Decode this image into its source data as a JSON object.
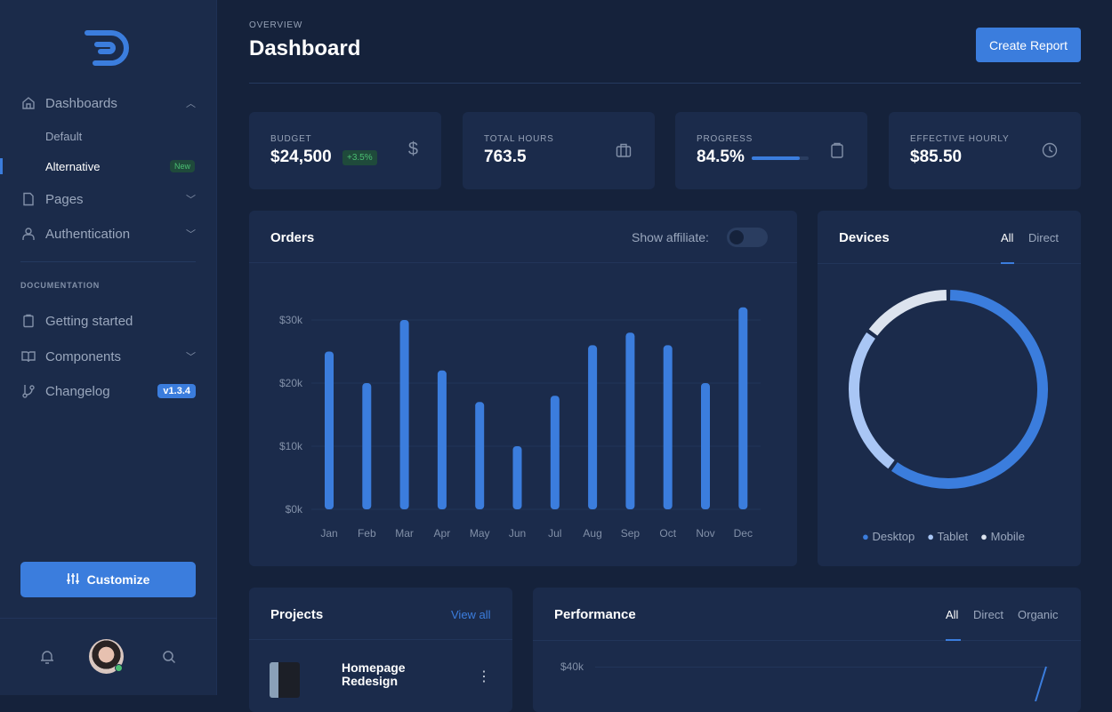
{
  "sidebar": {
    "nav": [
      {
        "label": "Dashboards",
        "icon": "home-icon",
        "expanded": true,
        "children": [
          {
            "label": "Default"
          },
          {
            "label": "Alternative",
            "badge": "New",
            "active": true
          }
        ]
      },
      {
        "label": "Pages",
        "icon": "file-icon"
      },
      {
        "label": "Authentication",
        "icon": "user-icon"
      }
    ],
    "section_title": "DOCUMENTATION",
    "docs": [
      {
        "label": "Getting started",
        "icon": "clipboard-icon"
      },
      {
        "label": "Components",
        "icon": "book-icon"
      },
      {
        "label": "Changelog",
        "icon": "git-branch-icon",
        "badge": "v1.3.4"
      }
    ],
    "customize_label": "Customize"
  },
  "header": {
    "overline": "OVERVIEW",
    "title": "Dashboard",
    "create_label": "Create Report"
  },
  "kpis": [
    {
      "label": "BUDGET",
      "value": "$24,500",
      "delta": "+3.5%",
      "icon": "dollar-icon"
    },
    {
      "label": "TOTAL HOURS",
      "value": "763.5",
      "icon": "briefcase-icon"
    },
    {
      "label": "PROGRESS",
      "value": "84.5%",
      "progress": 84.5,
      "icon": "clipboard-icon"
    },
    {
      "label": "EFFECTIVE HOURLY",
      "value": "$85.50",
      "icon": "clock-icon"
    }
  ],
  "orders": {
    "title": "Orders",
    "toggle_label": "Show affiliate:",
    "toggle_on": false
  },
  "devices": {
    "title": "Devices",
    "tabs": [
      "All",
      "Direct"
    ],
    "active_tab": "All"
  },
  "projects": {
    "title": "Projects",
    "view_all": "View all",
    "items": [
      {
        "name_line1": "Homepage",
        "name_line2": "Redesign"
      }
    ]
  },
  "performance": {
    "title": "Performance",
    "tabs": [
      "All",
      "Direct",
      "Organic"
    ],
    "active_tab": "All",
    "y_tick": "$40k"
  },
  "colors": {
    "accent": "#3b7ddd",
    "tablet": "#a9c6f5",
    "mobile": "#dce3ee",
    "success": "#4bbf73"
  },
  "chart_data": [
    {
      "type": "bar",
      "title": "Orders",
      "categories": [
        "Jan",
        "Feb",
        "Mar",
        "Apr",
        "May",
        "Jun",
        "Jul",
        "Aug",
        "Sep",
        "Oct",
        "Nov",
        "Dec"
      ],
      "values": [
        25,
        20,
        30,
        22,
        17,
        10,
        18,
        26,
        28,
        26,
        20,
        32
      ],
      "yticks": [
        "$0k",
        "$10k",
        "$20k",
        "$30k"
      ],
      "ylim": [
        0,
        35
      ],
      "unit": "$k",
      "grid": true
    },
    {
      "type": "pie",
      "title": "Devices",
      "donut": true,
      "labels": [
        "Desktop",
        "Tablet",
        "Mobile"
      ],
      "values": [
        60,
        25,
        15
      ]
    }
  ]
}
